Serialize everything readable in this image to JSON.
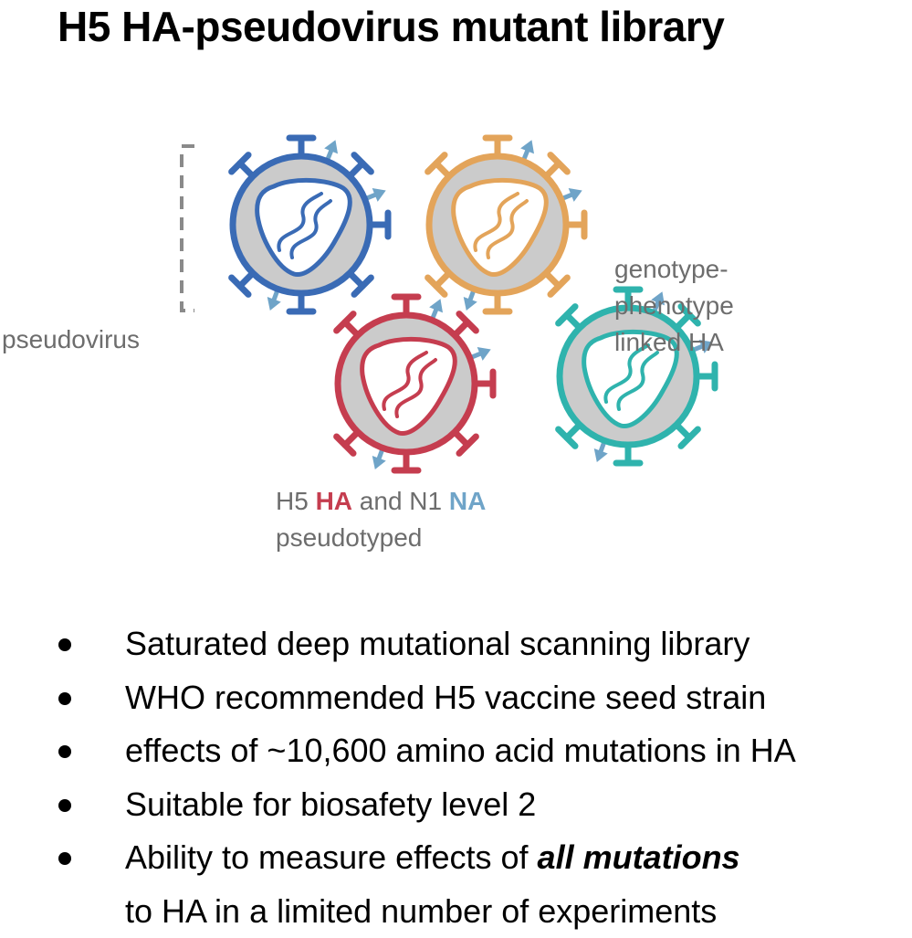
{
  "title": "H5 HA-pseudovirus mutant library",
  "diagram": {
    "label_pseudovirus": "pseudovirus",
    "label_genotype_line1": "genotype-",
    "label_genotype_line2": "phenotype",
    "label_genotype_line3": "linked HA",
    "label_pseudotyped": {
      "prefix": "H5 ",
      "ha": "HA",
      "middle": " and N1 ",
      "na": "NA",
      "line2": "pseudotyped"
    },
    "colors": {
      "blue_virus": "#3a6bb5",
      "orange_virus": "#e3a45a",
      "red_virus": "#c53d4f",
      "teal_virus": "#2fb3ad",
      "na_arrow": "#6fa4c8",
      "envelope": "#cbcbcb",
      "bracket": "#8a8a8a"
    }
  },
  "bullets": [
    {
      "text": "Saturated deep mutational scanning library"
    },
    {
      "text": "WHO recommended H5 vaccine seed strain"
    },
    {
      "text": "effects of ~10,600 amino acid mutations in HA"
    },
    {
      "text": "Suitable for biosafety level 2"
    },
    {
      "text_before": "Ability to measure effects of ",
      "emphasis": "all mutations"
    },
    {
      "text": "to HA in a limited number of experiments"
    }
  ]
}
